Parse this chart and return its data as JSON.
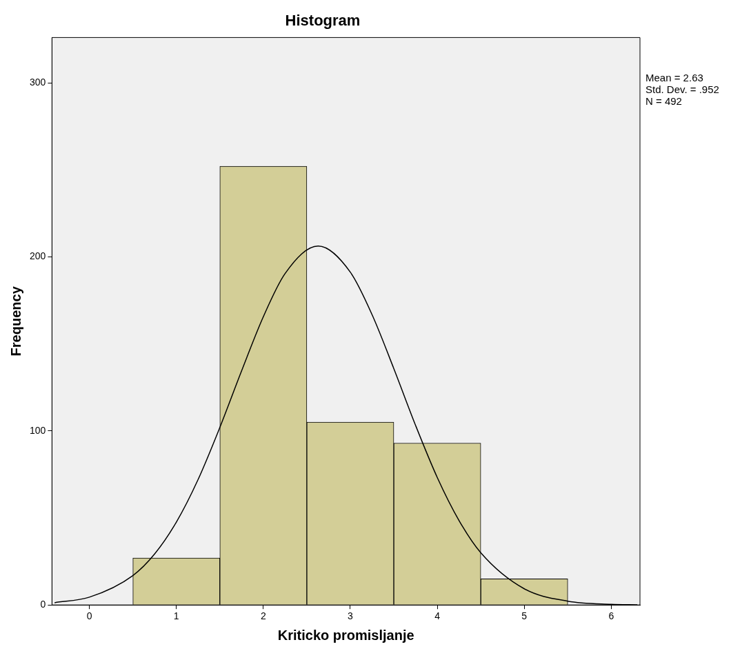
{
  "chart_data": {
    "type": "histogram",
    "title": "Histogram",
    "xlabel": "Kriticko promisljanje",
    "ylabel": "Frequency",
    "bins": [
      0.5,
      1.5,
      2.5,
      3.5,
      4.5,
      5.5
    ],
    "values": [
      27,
      252,
      105,
      93,
      15
    ],
    "color": "#d3ce97",
    "series": [
      {
        "type": "line",
        "color": "#000000",
        "x": [
          -0.4,
          0,
          0.5,
          0.75,
          1,
          1.25,
          1.5,
          1.75,
          2,
          2.25,
          2.63,
          3,
          3.25,
          3.5,
          3.75,
          4,
          4.25,
          4.5,
          5,
          5.5,
          6,
          6.3
        ],
        "values": [
          1.3,
          4.5,
          16.9,
          29.3,
          47.6,
          72.1,
          102,
          134.5,
          165.6,
          190.4,
          206.2,
          191.2,
          166.8,
          135.8,
          103.2,
          73.2,
          48.5,
          30,
          9.3,
          2.2,
          0.4,
          0.1
        ]
      }
    ],
    "xlim": [
      -0.43,
      6.33
    ],
    "xticks": [
      0,
      1,
      2,
      3,
      4,
      5,
      6
    ],
    "ylim": [
      0,
      326
    ],
    "yticks": [
      0,
      100,
      200,
      300
    ],
    "annotations": [
      "Mean = 2.63",
      "Std. Dev. = .952",
      "N = 492"
    ],
    "grid": false,
    "legend": false,
    "marker": "none"
  }
}
